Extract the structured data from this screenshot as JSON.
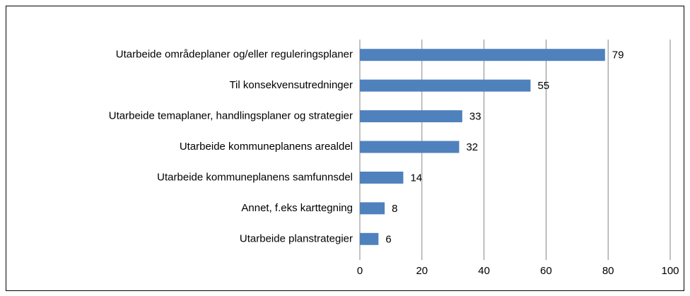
{
  "chart_data": {
    "type": "bar",
    "orientation": "horizontal",
    "categories": [
      "Utarbeide områdeplaner og/eller reguleringsplaner",
      "Til konsekvensutredninger",
      "Utarbeide temaplaner, handlingsplaner og strategier",
      "Utarbeide kommuneplanens arealdel",
      "Utarbeide kommuneplanens samfunnsdel",
      "Annet, f.eks karttegning",
      "Utarbeide planstrategier"
    ],
    "values": [
      79,
      55,
      33,
      32,
      14,
      8,
      6
    ],
    "color": "#4f81bd",
    "xlim": [
      0,
      100
    ],
    "xticks": [
      0,
      20,
      40,
      60,
      80,
      100
    ],
    "grid": true
  }
}
